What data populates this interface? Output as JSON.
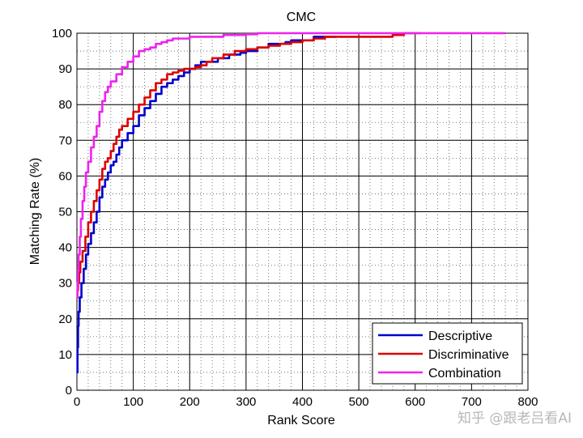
{
  "chart_data": {
    "type": "line",
    "title": "CMC",
    "xlabel": "Rank Score",
    "ylabel": "Matching Rate (%)",
    "xlim": [
      0,
      800
    ],
    "ylim": [
      0,
      100
    ],
    "x_ticks": [
      0,
      100,
      200,
      300,
      400,
      500,
      600,
      700,
      800
    ],
    "y_ticks": [
      0,
      10,
      20,
      30,
      40,
      50,
      60,
      70,
      80,
      90,
      100
    ],
    "grid": "major solid, minor dotted",
    "legend_position": "bottom-right",
    "series": [
      {
        "name": "Descriptive",
        "color": "#0000cc",
        "x": [
          0,
          1,
          2,
          3,
          5,
          8,
          12,
          16,
          20,
          25,
          30,
          35,
          40,
          45,
          50,
          55,
          60,
          65,
          70,
          75,
          80,
          90,
          100,
          110,
          120,
          130,
          140,
          150,
          160,
          170,
          180,
          190,
          200,
          210,
          220,
          230,
          240,
          250,
          260,
          270,
          280,
          290,
          300,
          310,
          320,
          330,
          340,
          350,
          360,
          370,
          380,
          390,
          400,
          420,
          440,
          460
        ],
        "y": [
          5,
          12,
          18,
          22,
          26,
          30,
          34,
          38,
          41,
          44,
          47,
          50,
          54,
          57,
          59,
          61,
          63,
          64,
          66,
          68,
          70,
          72,
          74,
          77,
          79,
          81,
          83,
          85,
          86,
          87,
          88,
          89,
          90,
          91,
          92,
          92,
          92,
          93,
          93,
          94,
          94,
          94.5,
          95,
          95,
          96,
          96,
          97,
          97,
          97,
          97.5,
          98,
          98,
          98,
          99,
          99,
          99
        ]
      },
      {
        "name": "Discriminative",
        "color": "#dd0000",
        "x": [
          0,
          1,
          2,
          4,
          6,
          10,
          15,
          20,
          25,
          30,
          35,
          40,
          45,
          50,
          55,
          60,
          65,
          70,
          75,
          80,
          90,
          100,
          110,
          120,
          130,
          140,
          150,
          160,
          170,
          180,
          190,
          200,
          210,
          220,
          230,
          240,
          250,
          260,
          270,
          280,
          300,
          320,
          340,
          360,
          380,
          400,
          420,
          440,
          460,
          480,
          500,
          520,
          540,
          560,
          580,
          600,
          610
        ],
        "y": [
          26,
          28,
          30,
          33,
          36,
          39,
          43,
          47,
          50,
          53,
          56,
          59,
          62,
          64,
          65,
          67,
          69,
          71,
          73,
          74,
          76,
          78,
          80,
          82,
          84,
          86,
          87,
          88.5,
          89,
          89.5,
          90,
          90,
          90.5,
          91,
          92,
          93,
          93,
          94,
          94,
          95,
          95.5,
          96,
          96.5,
          97,
          97.5,
          98,
          98.5,
          99,
          99,
          99,
          99,
          99,
          99,
          99.5,
          100,
          100,
          100
        ]
      },
      {
        "name": "Combination",
        "color": "#ee22ee",
        "x": [
          0,
          1,
          2,
          3,
          5,
          7,
          10,
          13,
          16,
          20,
          25,
          30,
          35,
          40,
          45,
          50,
          55,
          60,
          70,
          80,
          90,
          100,
          110,
          120,
          130,
          140,
          150,
          160,
          170,
          180,
          200,
          220,
          240,
          260,
          280,
          300,
          320,
          340,
          400,
          500,
          600,
          700,
          760
        ],
        "y": [
          26,
          30,
          34,
          38,
          43,
          48,
          53,
          57,
          61,
          64,
          68,
          71,
          74,
          78,
          81,
          83.5,
          85,
          86.5,
          88.5,
          90.5,
          92,
          93.5,
          95,
          95.5,
          96,
          97,
          97.5,
          98,
          98.5,
          98.5,
          99,
          99,
          99,
          99.5,
          99.5,
          99.7,
          100,
          100,
          100,
          100,
          100,
          100,
          100
        ]
      }
    ]
  },
  "watermark": "知乎 @跟老吕看AI"
}
